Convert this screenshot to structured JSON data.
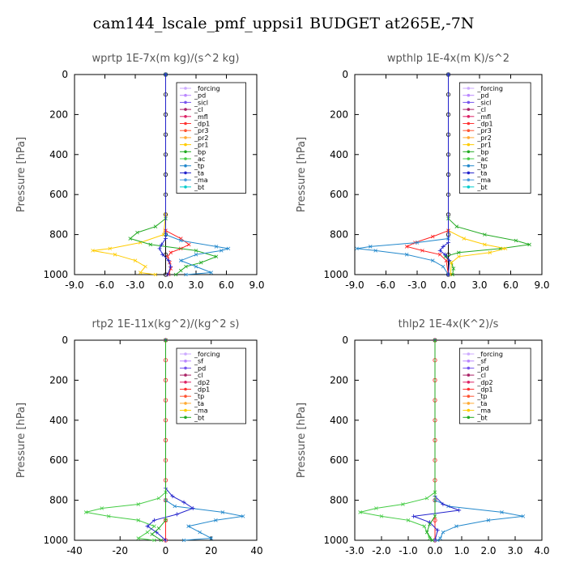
{
  "suptitle": "cam144_lscale_pmf_uppsi1  BUDGET at265E,-7N",
  "chart_data": [
    {
      "type": "line",
      "title": "wprtp  1E-7x(m kg)/(s^2 kg)",
      "ylabel": "Pressure [hPa]",
      "xlim": [
        -9,
        9
      ],
      "ylim": [
        1000,
        0
      ],
      "xticks": [
        "-9.0",
        "-6.0",
        "-3.0",
        "0.0",
        "3.0",
        "6.0",
        "9.0"
      ],
      "xtick_values": [
        -9,
        -6,
        -3,
        0,
        3,
        6,
        9
      ],
      "yticks": [
        "0",
        "200",
        "400",
        "600",
        "800",
        "1000"
      ],
      "ytick_values": [
        0,
        200,
        400,
        600,
        800,
        1000
      ],
      "legend": [
        "_forcing",
        "_pd",
        "_sicl",
        "_cl",
        "_mfl",
        "_dp1",
        "_pr3",
        "_pr2",
        "_pr1",
        "_bp",
        "_ac",
        "_tp",
        "_ta",
        "_ma",
        "_bt"
      ],
      "series": [
        {
          "name": "_forcing",
          "color": "#000000",
          "marker": "o",
          "y": [
            0,
            100,
            200,
            300,
            400,
            500,
            600,
            700,
            800,
            900,
            1000
          ],
          "x": [
            0,
            0,
            0,
            0,
            0,
            0,
            0,
            0,
            0,
            0,
            0
          ]
        },
        {
          "name": "_pr1",
          "color": "#ffcc00",
          "marker": "x",
          "y": [
            0,
            700,
            800,
            840,
            870,
            880,
            900,
            930,
            960,
            990,
            1000
          ],
          "x": [
            0,
            0,
            -0.2,
            -2.5,
            -5.5,
            -7.2,
            -5.0,
            -3.0,
            -2.0,
            -2.5,
            -1.0
          ]
        },
        {
          "name": "_dp1",
          "color": "#ff2222",
          "marker": "x",
          "y": [
            0,
            780,
            820,
            850,
            870,
            890,
            910,
            940,
            970,
            1000
          ],
          "x": [
            0,
            0,
            1.5,
            2.3,
            1.5,
            0.5,
            0.2,
            0.4,
            0.5,
            0.3
          ]
        },
        {
          "name": "_bp",
          "color": "#22aa22",
          "marker": "x",
          "y": [
            0,
            720,
            760,
            790,
            820,
            850,
            880,
            910,
            940,
            960,
            980,
            1000
          ],
          "x": [
            0,
            0,
            -1.0,
            -2.8,
            -3.5,
            -1.5,
            3.0,
            5.0,
            3.5,
            2.0,
            1.5,
            1.0
          ]
        },
        {
          "name": "_tp",
          "color": "#2288cc",
          "marker": "x",
          "y": [
            0,
            800,
            830,
            860,
            870,
            880,
            900,
            930,
            960,
            990,
            1000
          ],
          "x": [
            0,
            0,
            1.5,
            5.0,
            6.2,
            5.5,
            3.0,
            1.5,
            3.0,
            4.5,
            2.0
          ]
        },
        {
          "name": "_ta",
          "color": "#2222cc",
          "marker": "+",
          "y": [
            0,
            820,
            850,
            870,
            900,
            930,
            960,
            1000
          ],
          "x": [
            0,
            0,
            -0.4,
            -0.6,
            -0.3,
            0.3,
            0.5,
            0.2
          ]
        }
      ]
    },
    {
      "type": "line",
      "title": "wpthlp  1E-4x(m K)/s^2",
      "ylabel": "Pressure [hPa]",
      "xlim": [
        -9,
        9
      ],
      "ylim": [
        1000,
        0
      ],
      "xticks": [
        "-9.0",
        "-6.0",
        "-3.0",
        "0.0",
        "3.0",
        "6.0",
        "9.0"
      ],
      "xtick_values": [
        -9,
        -6,
        -3,
        0,
        3,
        6,
        9
      ],
      "yticks": [
        "0",
        "200",
        "400",
        "600",
        "800",
        "1000"
      ],
      "ytick_values": [
        0,
        200,
        400,
        600,
        800,
        1000
      ],
      "legend": [
        "_forcing",
        "_pd",
        "_sicl",
        "_cl",
        "_mfl",
        "_dp1",
        "_pr3",
        "_pr2",
        "_pr1",
        "_bp",
        "_ac",
        "_tp",
        "_ta",
        "_ma",
        "_bt"
      ],
      "series": [
        {
          "name": "_forcing",
          "color": "#000000",
          "marker": "o",
          "y": [
            0,
            100,
            200,
            300,
            400,
            500,
            600,
            700,
            800,
            900,
            1000
          ],
          "x": [
            0,
            0,
            0,
            0,
            0,
            0,
            0,
            0,
            0,
            0,
            0
          ]
        },
        {
          "name": "_bp",
          "color": "#22aa22",
          "marker": "x",
          "y": [
            0,
            720,
            760,
            800,
            830,
            850,
            870,
            890,
            910,
            940,
            970,
            1000
          ],
          "x": [
            0,
            0,
            0.8,
            3.5,
            6.5,
            7.8,
            5.0,
            1.0,
            -0.3,
            0.3,
            0.5,
            0.4
          ]
        },
        {
          "name": "_pr1",
          "color": "#ffcc00",
          "marker": "x",
          "y": [
            0,
            780,
            820,
            850,
            870,
            890,
            910,
            940,
            1000
          ],
          "x": [
            0,
            0,
            1.5,
            3.5,
            5.5,
            4.0,
            1.0,
            0.3,
            0.2
          ]
        },
        {
          "name": "_dp1",
          "color": "#ff2222",
          "marker": "x",
          "y": [
            0,
            780,
            810,
            840,
            860,
            880,
            900,
            930,
            1000
          ],
          "x": [
            0,
            0,
            -1.5,
            -3.2,
            -4.0,
            -2.5,
            -0.8,
            -0.2,
            0
          ]
        },
        {
          "name": "_tp",
          "color": "#2288cc",
          "marker": "x",
          "y": [
            0,
            820,
            840,
            860,
            870,
            880,
            900,
            930,
            960,
            1000
          ],
          "x": [
            0,
            0,
            -3.0,
            -7.5,
            -8.8,
            -7.0,
            -4.0,
            -1.5,
            -0.5,
            0
          ]
        },
        {
          "name": "_ta",
          "color": "#2222cc",
          "marker": "+",
          "y": [
            0,
            840,
            860,
            880,
            900,
            930,
            1000
          ],
          "x": [
            0,
            0,
            -0.5,
            -0.8,
            -0.3,
            0.1,
            0
          ]
        }
      ]
    },
    {
      "type": "line",
      "title": "rtp2  1E-11x(kg^2)/(kg^2 s)",
      "ylabel": "Pressure [hPa]",
      "xlim": [
        -40,
        40
      ],
      "ylim": [
        1000,
        0
      ],
      "xticks": [
        "-40",
        "-20",
        "0",
        "20",
        "40"
      ],
      "xtick_values": [
        -40,
        -20,
        0,
        20,
        40
      ],
      "yticks": [
        "0",
        "200",
        "400",
        "600",
        "800",
        "1000"
      ],
      "ytick_values": [
        0,
        200,
        400,
        600,
        800,
        1000
      ],
      "legend": [
        "_forcing",
        "_sf",
        "_pd",
        "_cl",
        "_dp2",
        "_dp1",
        "_tp",
        "_ta",
        "_ma",
        "_bt"
      ],
      "series": [
        {
          "name": "_forcing",
          "color": "#ff2222",
          "marker": "o",
          "y": [
            0,
            100,
            200,
            300,
            400,
            500,
            600,
            700,
            800,
            900,
            1000
          ],
          "x": [
            0,
            0,
            0,
            0,
            0,
            0,
            0,
            0,
            0,
            0,
            0
          ]
        },
        {
          "name": "_dp1",
          "color": "#44cc44",
          "marker": "x",
          "y": [
            0,
            760,
            790,
            820,
            840,
            860,
            880,
            900,
            930,
            960,
            990,
            1000
          ],
          "x": [
            0,
            0,
            -3,
            -12,
            -28,
            -35,
            -25,
            -12,
            -5,
            -8,
            -12,
            -5
          ]
        },
        {
          "name": "_tp",
          "color": "#2288cc",
          "marker": "x",
          "y": [
            0,
            800,
            830,
            860,
            880,
            900,
            930,
            960,
            990,
            1000
          ],
          "x": [
            0,
            0,
            4,
            25,
            34,
            22,
            10,
            15,
            20,
            8
          ]
        },
        {
          "name": "_ta",
          "color": "#2222cc",
          "marker": "+",
          "y": [
            0,
            740,
            780,
            810,
            840,
            870,
            900,
            930,
            960,
            1000
          ],
          "x": [
            0,
            0,
            3,
            8,
            12,
            5,
            -5,
            -8,
            -4,
            0
          ]
        },
        {
          "name": "_dp2",
          "color": "#22aa22",
          "marker": "x",
          "y": [
            0,
            900,
            940,
            970,
            1000
          ],
          "x": [
            0,
            0,
            -3,
            -6,
            -2
          ]
        }
      ]
    },
    {
      "type": "line",
      "title": "thlp2  1E-4x(K^2)/s",
      "ylabel": "Pressure [hPa]",
      "xlim": [
        -3,
        4
      ],
      "ylim": [
        1000,
        0
      ],
      "xticks": [
        "-3.0",
        "-2.0",
        "-1.0",
        "0.0",
        "1.0",
        "2.0",
        "3.0",
        "4.0"
      ],
      "xtick_values": [
        -3,
        -2,
        -1,
        0,
        1,
        2,
        3,
        4
      ],
      "yticks": [
        "0",
        "200",
        "400",
        "600",
        "800",
        "1000"
      ],
      "ytick_values": [
        0,
        200,
        400,
        600,
        800,
        1000
      ],
      "legend": [
        "_forcing",
        "_sf",
        "_pd",
        "_cl",
        "_dp2",
        "_dp1",
        "_tp",
        "_ta",
        "_ma",
        "_bt"
      ],
      "series": [
        {
          "name": "_forcing",
          "color": "#ff2222",
          "marker": "o",
          "y": [
            0,
            100,
            200,
            300,
            400,
            500,
            600,
            700,
            800,
            900,
            1000
          ],
          "x": [
            0,
            0,
            0,
            0,
            0,
            0,
            0,
            0,
            0,
            0,
            0
          ]
        },
        {
          "name": "_dp1",
          "color": "#44cc44",
          "marker": "x",
          "y": [
            0,
            760,
            790,
            820,
            840,
            860,
            880,
            900,
            930,
            960,
            990,
            1000
          ],
          "x": [
            0,
            0,
            -0.3,
            -1.2,
            -2.2,
            -2.8,
            -2.0,
            -1.0,
            -0.4,
            -0.3,
            -0.2,
            -0.1
          ]
        },
        {
          "name": "_tp",
          "color": "#2288cc",
          "marker": "x",
          "y": [
            0,
            800,
            830,
            860,
            880,
            900,
            930,
            960,
            990,
            1000
          ],
          "x": [
            0,
            0,
            0.5,
            2.5,
            3.3,
            2.0,
            0.8,
            0.3,
            0.2,
            0.1
          ]
        },
        {
          "name": "_ta",
          "color": "#2222cc",
          "marker": "+",
          "y": [
            0,
            780,
            820,
            850,
            880,
            910,
            950,
            1000
          ],
          "x": [
            0,
            0,
            0.3,
            0.9,
            -0.8,
            -0.2,
            0.1,
            0
          ]
        },
        {
          "name": "_dp2",
          "color": "#22aa22",
          "marker": "x",
          "y": [
            0,
            880,
            920,
            960,
            1000
          ],
          "x": [
            0,
            0,
            -0.2,
            -0.3,
            -0.1
          ]
        }
      ]
    }
  ]
}
